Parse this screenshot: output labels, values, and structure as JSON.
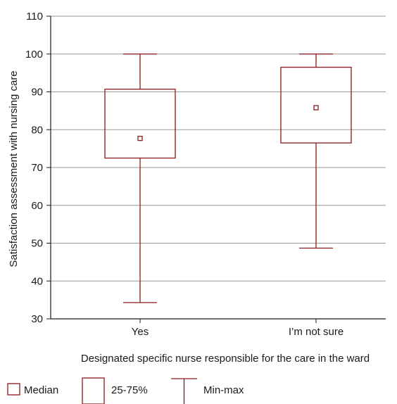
{
  "chart_data": {
    "type": "boxplot",
    "title": "",
    "xlabel": "Designated specific nurse responsible for the care in the ward",
    "ylabel": "Satisfaction assessment with nursing care",
    "ylim": [
      30,
      110
    ],
    "yticks": [
      30,
      40,
      50,
      60,
      70,
      80,
      90,
      100,
      110
    ],
    "grid": true,
    "color": "#8b1a1a",
    "categories": [
      "Yes",
      "I’m not sure"
    ],
    "boxes": [
      {
        "category": "Yes",
        "min": 34.3,
        "q1": 72.5,
        "median": 77.7,
        "q3": 90.7,
        "max": 100
      },
      {
        "category": "I’m not sure",
        "min": 48.7,
        "q1": 76.5,
        "median": 85.8,
        "q3": 96.5,
        "max": 100
      }
    ],
    "legend": {
      "placement": "bottom",
      "items": [
        {
          "symbol": "median",
          "label": "Median"
        },
        {
          "symbol": "box",
          "label": "25-75%"
        },
        {
          "symbol": "whisker",
          "label": "Min-max"
        }
      ]
    }
  }
}
